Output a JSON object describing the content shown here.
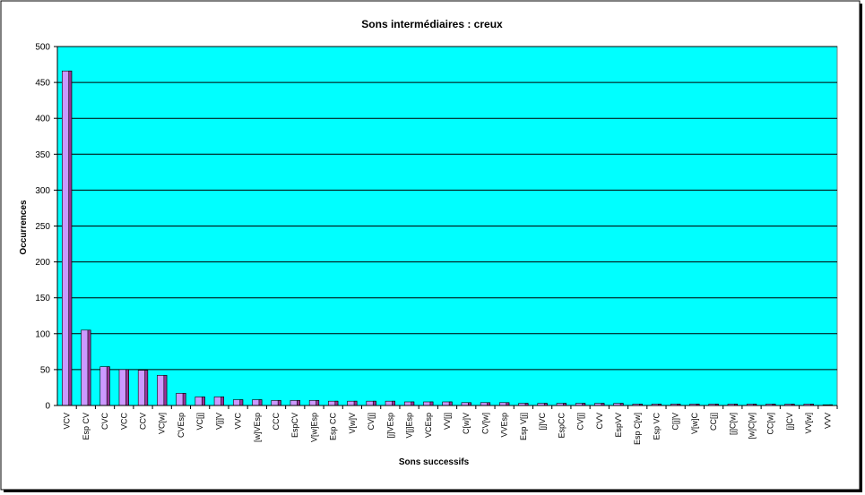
{
  "chart_data": {
    "type": "bar",
    "title": "Sons intermédiaires : creux",
    "xlabel": "Sons successifs",
    "ylabel": "Occurrences",
    "ylim": [
      0,
      500
    ],
    "ytick_step": 50,
    "grid": true,
    "legend": "none",
    "categories": [
      "VCV",
      "Esp CV",
      "CVC",
      "VCC",
      "CCV",
      "VC[w]",
      "CVEsp",
      "VC[j]",
      "V[j]V",
      "VVC",
      "[w]VEsp",
      "CCC",
      "EspCV",
      "V[w]Esp",
      "Esp CC",
      "V[w]V",
      "CV[j]",
      "[j]VEsp",
      "V[j]Esp",
      "VCEsp",
      "VV[j]",
      "C[w]V",
      "CV[w]",
      "VVEsp",
      "Esp V[j]",
      "[j]VC",
      "EspCC",
      "CV[j]",
      "CVV",
      "EspVV",
      "Esp C[w]",
      "Esp VC",
      "C[j]V",
      "V[w]C",
      "CC[j]",
      "[j]C[w]",
      "[w]C[w]",
      "CC[w]",
      "[j]CV",
      "VV[w]",
      "VVV"
    ],
    "values": [
      466,
      105,
      54,
      50,
      49,
      42,
      17,
      12,
      12,
      8,
      8,
      7,
      7,
      7,
      6,
      6,
      6,
      6,
      5,
      5,
      5,
      4,
      4,
      4,
      3,
      3,
      3,
      3,
      3,
      3,
      2,
      2,
      2,
      2,
      2,
      2,
      2,
      2,
      2,
      2,
      1
    ],
    "colors": {
      "plot_bg": "#00FFFF",
      "bar_face": "#993399",
      "bar_side": "#CC99FF",
      "grid": "#000000",
      "frame": "#000000"
    }
  }
}
